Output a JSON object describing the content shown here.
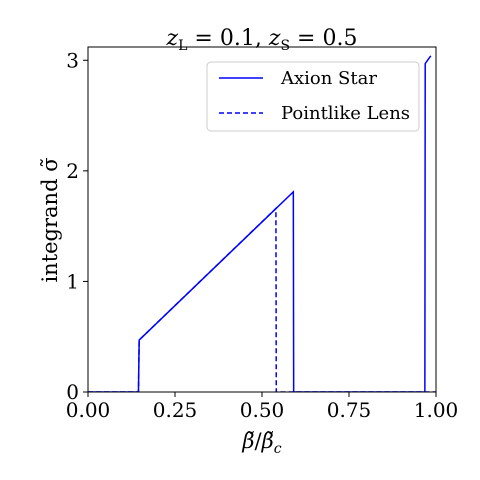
{
  "chart_data": {
    "type": "line",
    "title": "z_L = 0.1, z_S = 0.5",
    "title_parts": {
      "z1_var": "z",
      "z1_sub": "L",
      "z1_val": " = 0.1, ",
      "z2_var": "z",
      "z2_sub": "S",
      "z2_val": " = 0.5"
    },
    "xlabel": "β̃/β̃c",
    "xlabel_parts": {
      "num": "β̃",
      "slash": "/",
      "den": "β̃",
      "den_sub": "c"
    },
    "ylabel": "integrand σ̃",
    "xlim": [
      0.0,
      1.0
    ],
    "ylim": [
      0.0,
      3.12
    ],
    "xticks": [
      0.0,
      0.25,
      0.5,
      0.75,
      1.0
    ],
    "xtick_labels": [
      "0.00",
      "0.25",
      "0.50",
      "0.75",
      "1.00"
    ],
    "yticks": [
      0,
      1,
      2,
      3
    ],
    "ytick_labels": [
      "0",
      "1",
      "2",
      "3"
    ],
    "grid": false,
    "legend_position": "upper right",
    "series": [
      {
        "name": "Axion Star",
        "color": "#0000ff",
        "linestyle": "solid",
        "x": [
          0.0,
          0.145,
          0.147,
          0.59,
          0.591,
          0.968,
          0.969,
          0.985
        ],
        "y": [
          0.0,
          0.0,
          0.47,
          1.81,
          0.0,
          0.0,
          2.97,
          3.04
        ]
      },
      {
        "name": "Pointlike Lens",
        "color": "#0000ff",
        "linestyle": "dashed",
        "x": [
          0.0,
          0.145,
          0.147,
          0.54,
          0.541,
          1.0
        ],
        "y": [
          0.0,
          0.0,
          0.47,
          1.66,
          0.0,
          0.0
        ]
      }
    ]
  }
}
